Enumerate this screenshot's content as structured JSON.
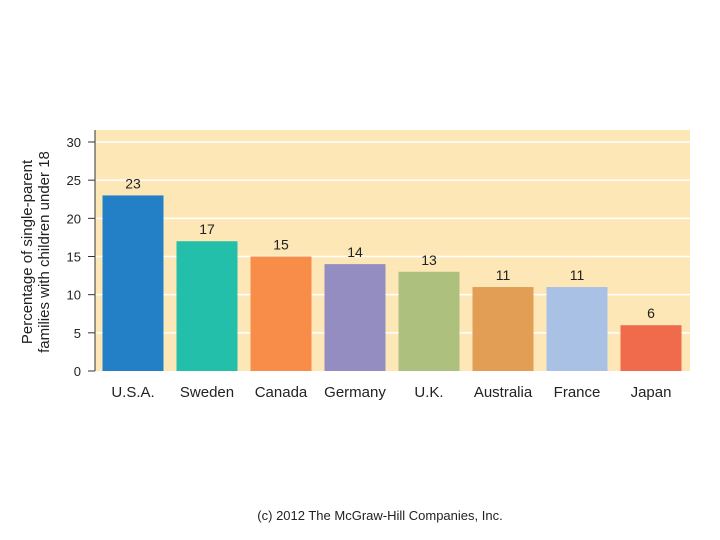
{
  "chart_data": {
    "type": "bar",
    "categories": [
      "U.S.A.",
      "Sweden",
      "Canada",
      "Germany",
      "U.K.",
      "Australia",
      "France",
      "Japan"
    ],
    "values": [
      23,
      17,
      15,
      14,
      13,
      11,
      11,
      6
    ],
    "colors": [
      "#2380c6",
      "#24bfaa",
      "#f78d48",
      "#948dc2",
      "#adc07e",
      "#e29e55",
      "#a9c1e4",
      "#f06b4b"
    ],
    "ylabel_lines": [
      "Percentage of single-parent",
      "families with children under 18"
    ],
    "ylim": [
      0,
      30
    ],
    "yticks": [
      0,
      5,
      10,
      15,
      20,
      25,
      30
    ],
    "grid": true,
    "background": "#fde7b7",
    "gridline_color": "#ffffff"
  },
  "footer": {
    "copyright": "(c) 2012 The McGraw-Hill Companies, Inc."
  }
}
